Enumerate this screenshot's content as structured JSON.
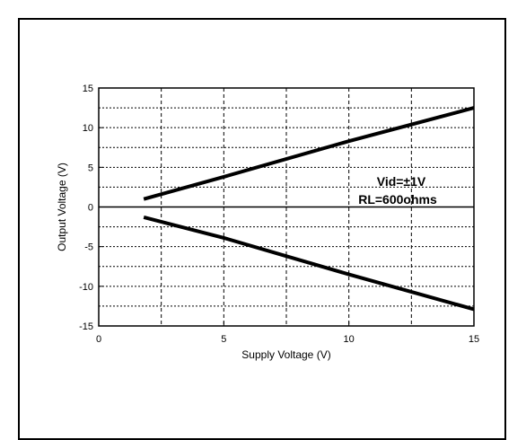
{
  "chart_data": {
    "type": "line",
    "xlabel": "Supply Voltage (V)",
    "ylabel": "Output Voltage (V)",
    "xlim": [
      0,
      15
    ],
    "ylim": [
      -15,
      15
    ],
    "x_ticks": [
      0,
      5,
      10,
      15
    ],
    "y_ticks": [
      -15,
      -10,
      -5,
      0,
      5,
      10,
      15
    ],
    "x_tick_labels": [
      "0",
      "5",
      "10",
      "15"
    ],
    "y_tick_labels": [
      "-15",
      "-10",
      "-5",
      "0",
      "5",
      "10",
      "15"
    ],
    "grid": true,
    "series": [
      {
        "x": [
          1.8,
          5,
          10,
          15
        ],
        "y": [
          1.0,
          3.8,
          8.3,
          12.5
        ]
      },
      {
        "x": [
          1.8,
          5,
          10,
          15
        ],
        "y": [
          -1.3,
          -3.9,
          -8.5,
          -12.9
        ]
      }
    ],
    "annotations": [
      "Vid=±1V",
      "RL=600ohms"
    ]
  }
}
